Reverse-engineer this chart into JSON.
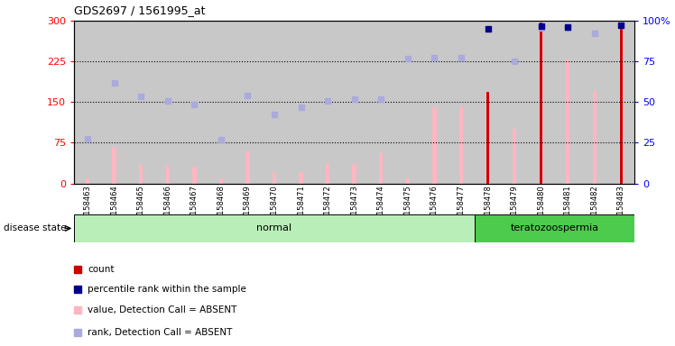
{
  "title": "GDS2697 / 1561995_at",
  "samples": [
    "GSM158463",
    "GSM158464",
    "GSM158465",
    "GSM158466",
    "GSM158467",
    "GSM158468",
    "GSM158469",
    "GSM158470",
    "GSM158471",
    "GSM158472",
    "GSM158473",
    "GSM158474",
    "GSM158475",
    "GSM158476",
    "GSM158477",
    "GSM158478",
    "GSM158479",
    "GSM158480",
    "GSM158481",
    "GSM158482",
    "GSM158483"
  ],
  "disease_state": [
    "normal",
    "normal",
    "normal",
    "normal",
    "normal",
    "normal",
    "normal",
    "normal",
    "normal",
    "normal",
    "normal",
    "normal",
    "normal",
    "normal",
    "normal",
    "teratozoospermia",
    "teratozoospermia",
    "teratozoospermia",
    "teratozoospermia",
    "teratozoospermia",
    "teratozoospermia"
  ],
  "value_absent": [
    10,
    68,
    35,
    32,
    30,
    10,
    60,
    20,
    20,
    35,
    35,
    55,
    10,
    140,
    142,
    168,
    100,
    297,
    228,
    170,
    297
  ],
  "rank_absent": [
    82,
    185,
    160,
    152,
    145,
    80,
    162,
    128,
    140,
    152,
    155,
    155,
    230,
    232,
    232,
    285,
    225,
    287,
    287,
    277,
    292
  ],
  "count": [
    null,
    null,
    null,
    null,
    null,
    null,
    null,
    null,
    null,
    null,
    null,
    null,
    null,
    null,
    null,
    168,
    null,
    297,
    null,
    null,
    297
  ],
  "percentile": [
    null,
    null,
    null,
    null,
    null,
    null,
    null,
    null,
    null,
    null,
    null,
    null,
    null,
    null,
    null,
    285,
    null,
    290,
    288,
    null,
    292
  ],
  "ylim": [
    0,
    300
  ],
  "yticks_left": [
    0,
    75,
    150,
    225,
    300
  ],
  "ytick_labels_right": [
    "0",
    "25",
    "50",
    "75",
    "100%"
  ],
  "hlines": [
    75,
    150,
    225
  ],
  "normal_color": "#B8EEB8",
  "terato_color": "#4CCB4C",
  "bar_bg": "#C8C8C8",
  "value_bar_color": "#FFB6C1",
  "count_bar_color": "#CC0000",
  "rank_sq_color": "#AAAADD",
  "percentile_sq_color": "#00008B",
  "legend_items": [
    {
      "label": "count",
      "color": "#CC0000"
    },
    {
      "label": "percentile rank within the sample",
      "color": "#00008B"
    },
    {
      "label": "value, Detection Call = ABSENT",
      "color": "#FFB6C1"
    },
    {
      "label": "rank, Detection Call = ABSENT",
      "color": "#AAAADD"
    }
  ]
}
